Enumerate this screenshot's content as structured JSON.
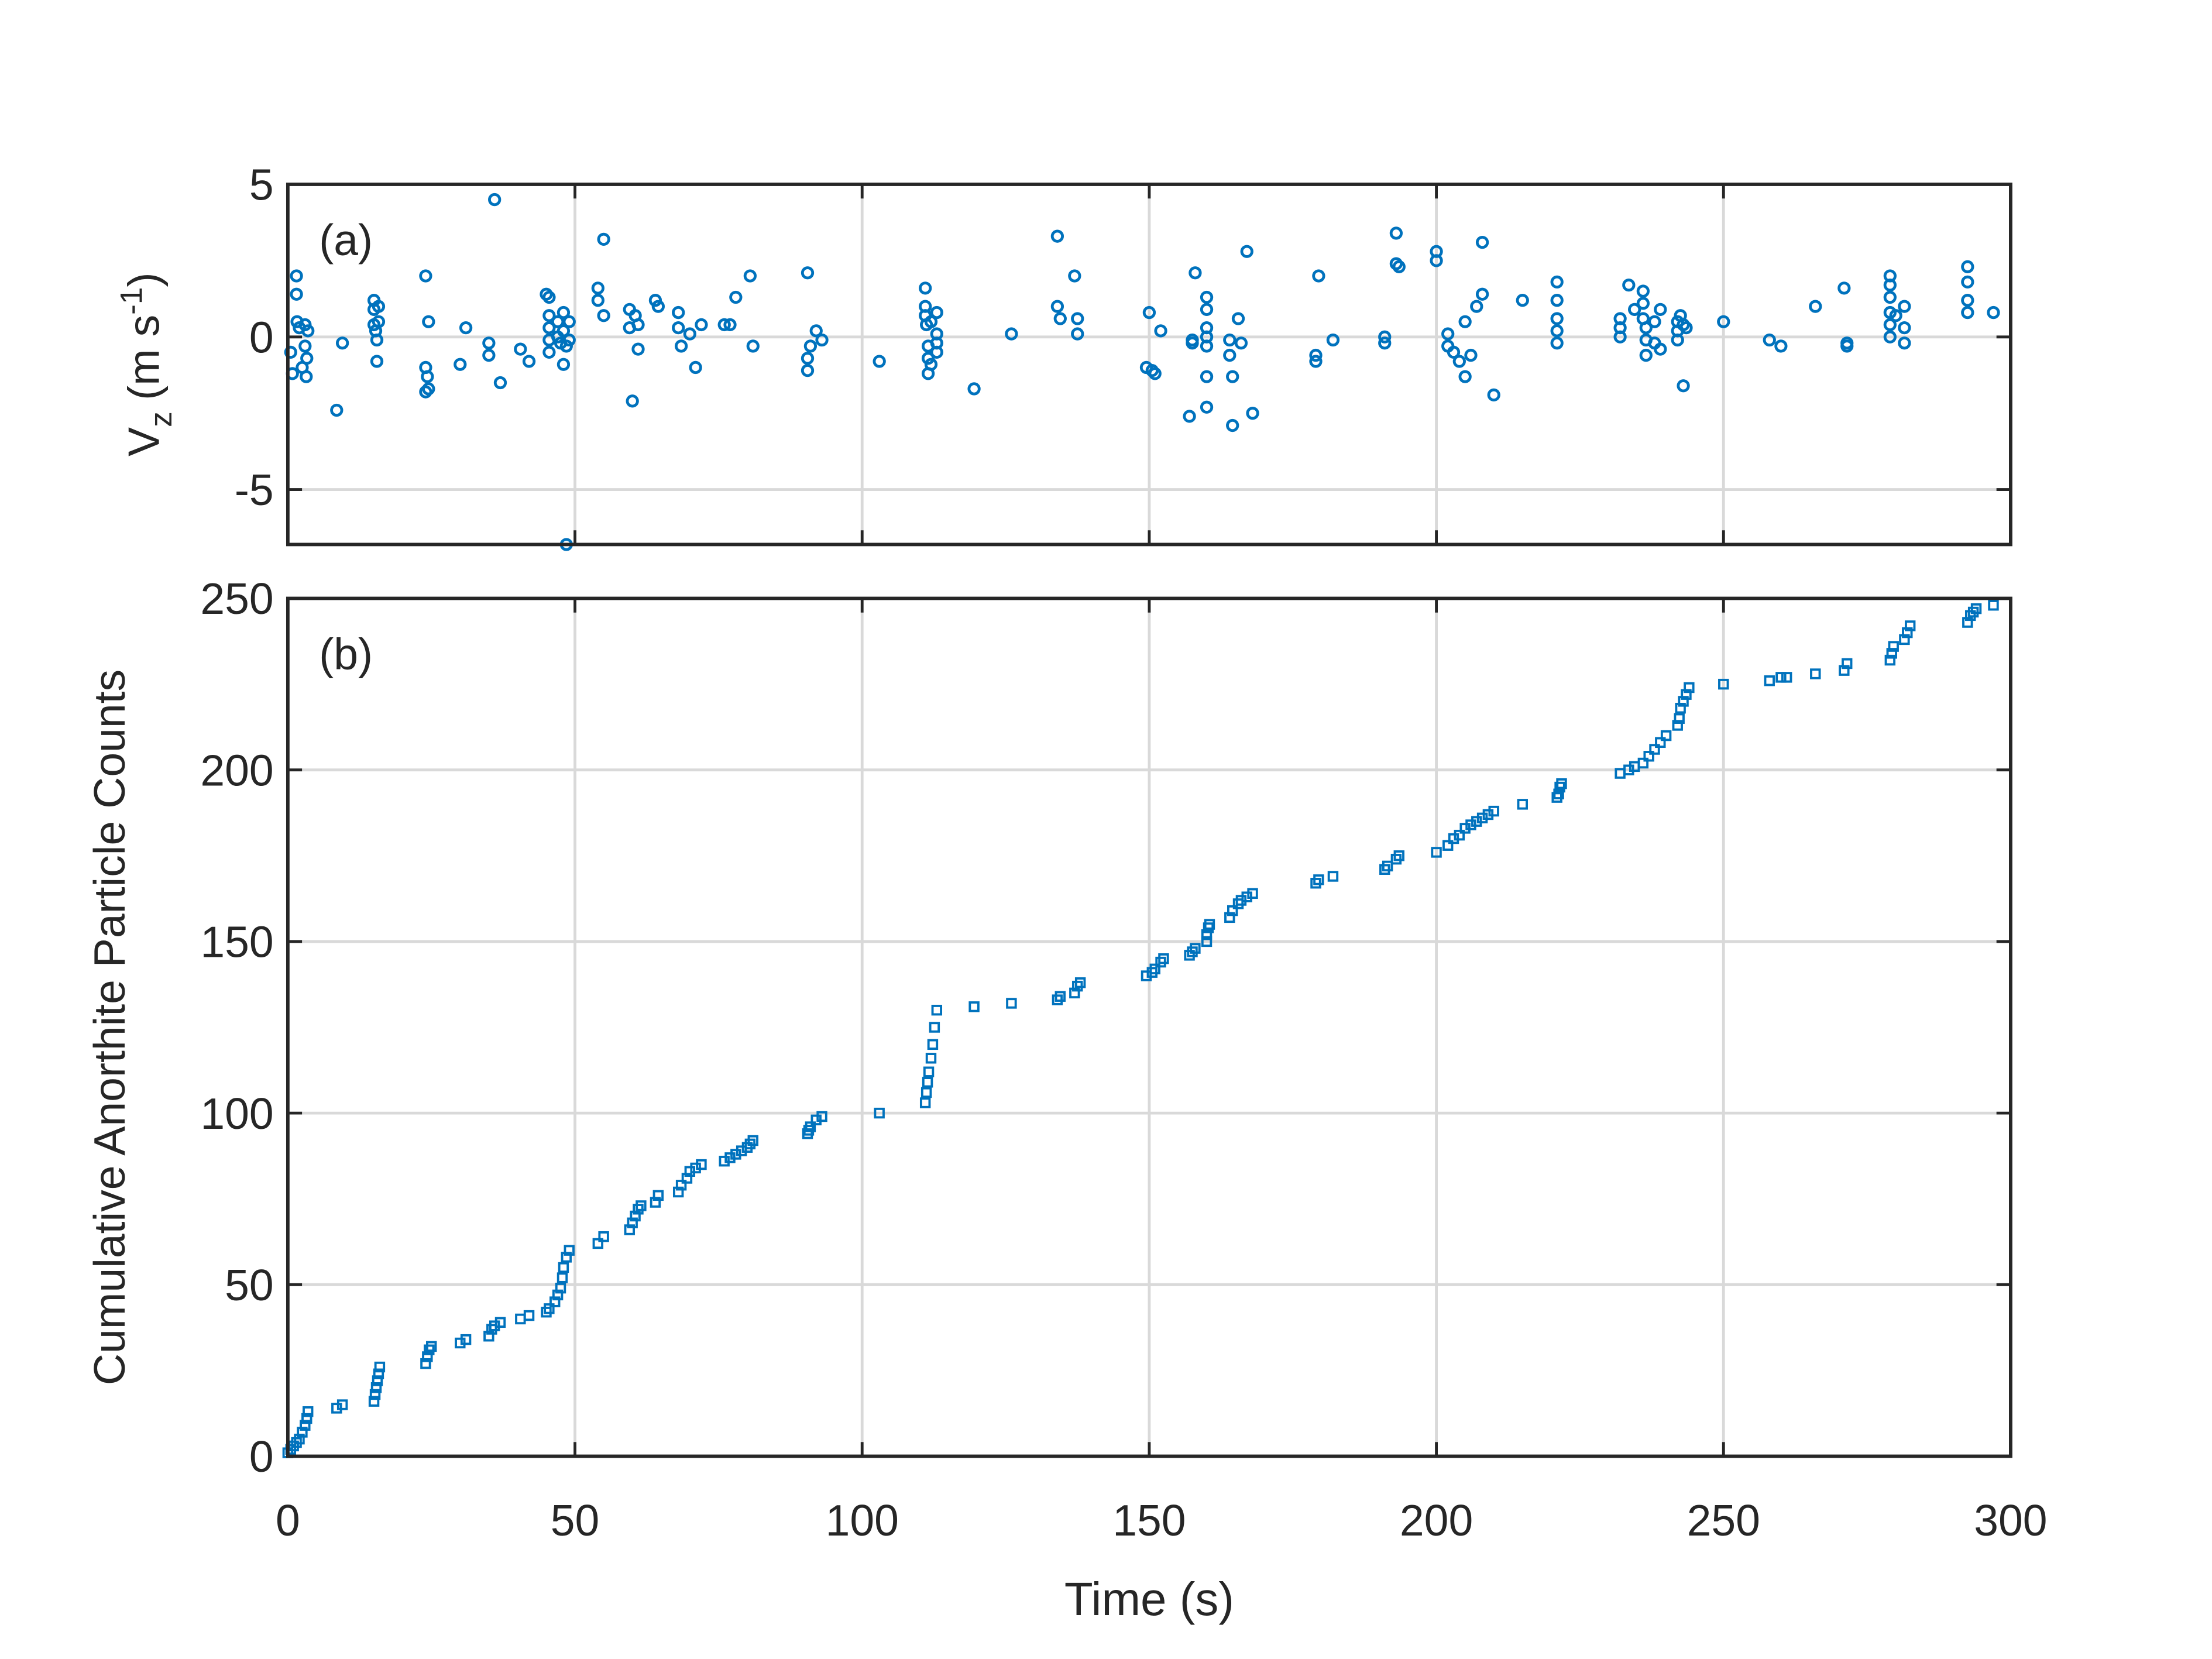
{
  "chart_data": [
    {
      "type": "scatter",
      "annotation": "(a)",
      "marker": "circle",
      "color": "#0072BD",
      "grid": true,
      "ylabel": {
        "base": "V",
        "sub": "z",
        "unit": "(m s",
        "sup": "-1",
        "close": ")"
      },
      "xlim": [
        0,
        300
      ],
      "xticks": [
        0,
        50,
        100,
        150,
        200,
        250,
        300
      ],
      "ylim": [
        -6.8,
        5
      ],
      "yticks": [
        -5,
        0,
        5
      ],
      "x": [
        0.5,
        0.8,
        1.5,
        1.5,
        1.6,
        2,
        2.5,
        3,
        3,
        3.2,
        3.3,
        3.5,
        8.5,
        9.5,
        15,
        15,
        15,
        15.3,
        15.5,
        15.5,
        15.8,
        15.8,
        24,
        24,
        24,
        24.3,
        24.5,
        24.5,
        31,
        30,
        35,
        35,
        36,
        37,
        40.5,
        42,
        45,
        45.5,
        45.5,
        45.5,
        45.5,
        45.5,
        47,
        47,
        47.5,
        48,
        48,
        48,
        48.5,
        49,
        49,
        48.5,
        54,
        54,
        55,
        55,
        59.5,
        59.5,
        60,
        60.5,
        61,
        61,
        64,
        64.5,
        68,
        68,
        68.5,
        70,
        71,
        72,
        76,
        77,
        78,
        80.5,
        81,
        90.5,
        90.5,
        90.5,
        91,
        92,
        93,
        103,
        111,
        111,
        111,
        111.2,
        111.5,
        111.5,
        111.5,
        112,
        112,
        113,
        113,
        113,
        113,
        119.5,
        126,
        134,
        134,
        134.5,
        137,
        137.5,
        137.5,
        150,
        149.5,
        150.5,
        151,
        152,
        157,
        157.5,
        157.5,
        158,
        160,
        160,
        160,
        160,
        160,
        160,
        160,
        164,
        164,
        164.5,
        164.5,
        165.5,
        166,
        167,
        168,
        179,
        179,
        179.5,
        182,
        191,
        191,
        193,
        193,
        193.5,
        200,
        200,
        202,
        202,
        203,
        204,
        205,
        205,
        206,
        207,
        208,
        208,
        210,
        215,
        221,
        221,
        221,
        221,
        221,
        232,
        232,
        232,
        233.5,
        234.5,
        236,
        236,
        236,
        236.5,
        236.5,
        236.5,
        238,
        238,
        239,
        239,
        242,
        242,
        242,
        242.5,
        243,
        243,
        243.5,
        250,
        258,
        260,
        266,
        271,
        271.5,
        271.5,
        279,
        279,
        279,
        279,
        279,
        279,
        280,
        281.5,
        281.5,
        281.5,
        292.5,
        292.5,
        292.5,
        292.5,
        297
      ],
      "values": [
        -0.5,
        -1.2,
        2.0,
        1.4,
        0.5,
        0.3,
        -1,
        0.4,
        -0.3,
        -1.3,
        -0.7,
        0.2,
        -2.4,
        -0.2,
        1.2,
        0.9,
        0.4,
        0.2,
        -0.1,
        -0.8,
        1.0,
        0.5,
        2.0,
        -1.8,
        -1.0,
        -1.3,
        0.5,
        -1.7,
        0.3,
        -0.9,
        -0.2,
        -0.6,
        4.5,
        -1.5,
        -0.4,
        -0.8,
        1.4,
        1.3,
        0.7,
        0.3,
        -0.1,
        -0.5,
        0.5,
        0,
        -0.2,
        0.8,
        0.2,
        -0.9,
        -0.3,
        0.5,
        -0.1,
        -6.8,
        1.6,
        1.2,
        3.2,
        0.7,
        0.9,
        0.3,
        -2.1,
        0.7,
        0.4,
        -0.4,
        1.2,
        1.0,
        0.8,
        0.3,
        -0.3,
        0.1,
        -1,
        0.4,
        0.4,
        0.4,
        1.3,
        2.0,
        -0.3,
        2.1,
        -0.7,
        -1.1,
        -0.3,
        0.2,
        -0.1,
        -0.8,
        1.6,
        1.0,
        0.7,
        0.4,
        -0.3,
        -0.7,
        -1.2,
        0.5,
        -0.9,
        0.8,
        0.1,
        -0.2,
        -0.5,
        -1.7,
        0.1,
        3.3,
        1.0,
        0.6,
        2.0,
        0.6,
        0.1,
        0.8,
        -1,
        -1.1,
        -1.2,
        0.2,
        -2.6,
        -0.1,
        -0.2,
        2.1,
        1.3,
        0.9,
        0.3,
        0,
        -0.3,
        -1.3,
        -2.3,
        -0.1,
        -0.6,
        -1.3,
        -2.9,
        0.6,
        -0.2,
        2.8,
        -2.5,
        -0.6,
        -0.8,
        2.0,
        -0.1,
        0,
        -0.2,
        3.4,
        2.4,
        2.3,
        2.8,
        2.5,
        0.1,
        -0.3,
        -0.5,
        -0.8,
        -1.3,
        0.5,
        -0.6,
        1.0,
        1.4,
        3.1,
        -1.9,
        1.2,
        1.8,
        1.2,
        0.6,
        0.2,
        -0.2,
        0.6,
        0.3,
        0,
        1.7,
        0.9,
        1.5,
        1.1,
        0.6,
        0.3,
        -0.1,
        -0.6,
        0.5,
        -0.2,
        0.9,
        -0.4,
        0.5,
        0.2,
        -0.1,
        0.7,
        0.4,
        -1.6,
        0.3,
        0.5,
        -0.1,
        -0.3,
        1.0,
        1.6,
        -0.2,
        -0.3,
        2.0,
        1.7,
        1.3,
        0.8,
        0.4,
        0,
        0.7,
        1.0,
        0.3,
        -0.2,
        2.3,
        1.8,
        1.2,
        0.8,
        0.8
      ]
    },
    {
      "type": "scatter",
      "annotation": "(b)",
      "marker": "square",
      "color": "#0072BD",
      "grid": true,
      "xlabel": "Time (s)",
      "ylabel": "Cumulative Anorthite Particle Counts",
      "xlim": [
        0,
        300
      ],
      "xticks": [
        0,
        50,
        100,
        150,
        200,
        250,
        300
      ],
      "ylim": [
        0,
        250
      ],
      "yticks": [
        0,
        50,
        100,
        150,
        200,
        250
      ],
      "x": [
        0,
        0.5,
        1,
        1.5,
        2,
        2.5,
        3,
        3.3,
        3.5,
        8.5,
        9.5,
        15,
        15.2,
        15.4,
        15.6,
        15.8,
        16,
        24,
        24.3,
        24.6,
        25,
        30,
        31,
        35,
        35.5,
        36,
        37,
        40.5,
        42,
        45,
        45.5,
        46.5,
        47,
        47.5,
        47.8,
        48,
        48.5,
        49,
        54,
        55,
        59.5,
        60,
        60.5,
        61,
        61.5,
        64,
        64.5,
        68,
        68.5,
        69.5,
        70,
        71,
        72,
        76,
        77,
        78,
        79,
        80,
        80.5,
        81,
        90.5,
        90.7,
        91,
        92,
        93,
        103,
        111,
        111.2,
        111.4,
        111.6,
        112,
        112.3,
        112.6,
        113,
        119.5,
        126,
        134,
        134.5,
        137,
        137.5,
        138,
        149.5,
        150.5,
        151,
        152,
        152.5,
        157,
        157.5,
        158,
        160,
        160,
        160.3,
        160.5,
        164,
        164.5,
        165.5,
        166,
        167,
        168,
        179,
        179.5,
        182,
        191,
        191.5,
        193,
        193.5,
        200,
        202,
        203,
        204,
        205,
        206,
        207,
        208,
        209,
        210,
        215,
        221,
        221.3,
        221.5,
        221.8,
        232,
        233.5,
        234.5,
        236,
        237,
        238,
        239,
        240,
        242,
        242.3,
        242.5,
        243,
        243.5,
        244,
        250,
        258,
        260,
        261,
        266,
        271,
        271.5,
        279,
        279.3,
        279.6,
        281.5,
        282,
        282.5,
        292.5,
        293,
        293.5,
        294,
        297
      ],
      "values": [
        1,
        2,
        3,
        4,
        5,
        7,
        9,
        11,
        13,
        14,
        15,
        16,
        18,
        20,
        22,
        24,
        26,
        27,
        29,
        31,
        32,
        33,
        34,
        35,
        37,
        38,
        39,
        40,
        41,
        42,
        43,
        45,
        47,
        49,
        52,
        55,
        58,
        60,
        62,
        64,
        66,
        68,
        70,
        72,
        73,
        74,
        76,
        77,
        79,
        81,
        83,
        84,
        85,
        86,
        87,
        88,
        89,
        90,
        91,
        92,
        94,
        95,
        96,
        98,
        99,
        100,
        103,
        106,
        109,
        112,
        116,
        120,
        125,
        130,
        131,
        132,
        133,
        134,
        135,
        137,
        138,
        140,
        141,
        142,
        144,
        145,
        146,
        147,
        148,
        150,
        152,
        154,
        155,
        157,
        159,
        161,
        162,
        163,
        164,
        167,
        168,
        169,
        171,
        172,
        174,
        175,
        176,
        178,
        180,
        181,
        183,
        184,
        185,
        186,
        187,
        188,
        190,
        192,
        193,
        195,
        196,
        199,
        200,
        201,
        202,
        204,
        206,
        208,
        210,
        213,
        215,
        218,
        220,
        222,
        224,
        225,
        226,
        227,
        227,
        228,
        229,
        231,
        232,
        234,
        236,
        238,
        240,
        242,
        243,
        245,
        246,
        247,
        248
      ]
    }
  ]
}
